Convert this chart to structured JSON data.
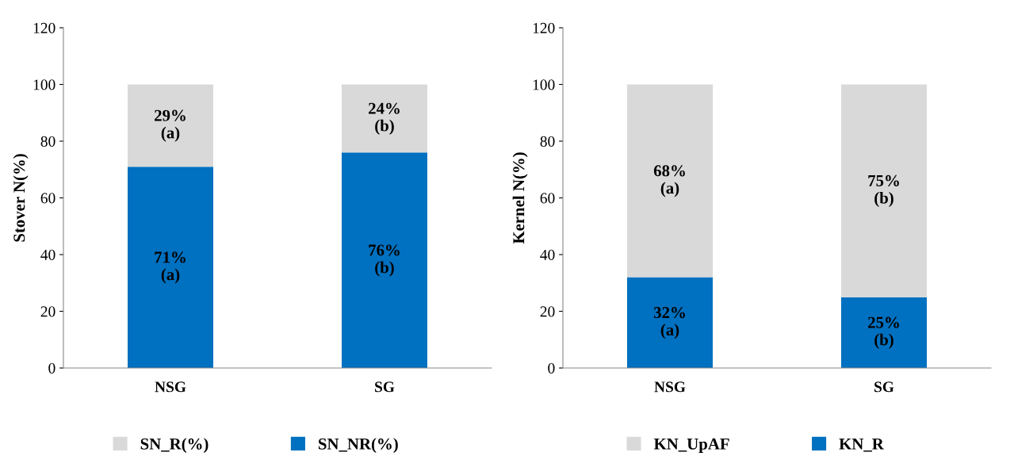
{
  "chart_data": [
    {
      "type": "bar",
      "stacked": true,
      "categories": [
        "NSG",
        "SG"
      ],
      "ylabel": "Stover N(%)",
      "ylim": [
        0,
        120
      ],
      "yticks": [
        0,
        20,
        40,
        60,
        80,
        100,
        120
      ],
      "legend": "bottom",
      "grid": false,
      "series": [
        {
          "name": "SN_NR(%)",
          "color": "#0070c0",
          "values": [
            71,
            76
          ],
          "value_labels": [
            "71%\n(a)",
            "76%\n(b)"
          ]
        },
        {
          "name": "SN_R(%)",
          "color": "#d9d9d9",
          "values": [
            29,
            24
          ],
          "value_labels": [
            "29%\n(a)",
            "24%\n(b)"
          ]
        }
      ]
    },
    {
      "type": "bar",
      "stacked": true,
      "categories": [
        "NSG",
        "SG"
      ],
      "ylabel": "Kernel N(%)",
      "ylim": [
        0,
        120
      ],
      "yticks": [
        0,
        20,
        40,
        60,
        80,
        100,
        120
      ],
      "legend": "bottom",
      "grid": false,
      "series": [
        {
          "name": "KN_R",
          "color": "#0070c0",
          "values": [
            32,
            25
          ],
          "value_labels": [
            "32%\n(a)",
            "25%\n(b)"
          ]
        },
        {
          "name": "KN_UpAF",
          "color": "#d9d9d9",
          "values": [
            68,
            75
          ],
          "value_labels": [
            "68%\n(a)",
            "75%\n(b)"
          ]
        }
      ]
    }
  ]
}
